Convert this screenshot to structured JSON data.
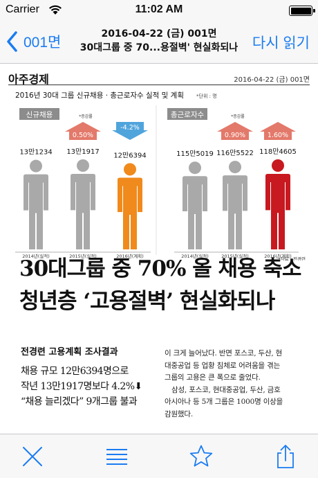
{
  "status_bar": {
    "carrier": "Carrier",
    "time": "11:02 AM"
  },
  "nav": {
    "back_label": "001면",
    "title_line1": "2016-04-22 (금) 001면",
    "title_line2": "30대그룹 중 70...용절벽' 현실화되나",
    "reload_label": "다시 읽기"
  },
  "paper": {
    "logo": "아주경제",
    "date": "2016-04-22 (금) 001면"
  },
  "chart_data": {
    "type": "bar",
    "title": "2016년 30대 그룹 신규채용 · 총근로자수 실적 및 계획",
    "unit": "*단위 : 명",
    "source": "*자료 : 전경련",
    "groups": [
      {
        "name": "신규채용",
        "categories": [
          "2014년(실적)",
          "2015년(실적)",
          "2016년(계획)"
        ],
        "value_labels": [
          "13만1234",
          "13만1917",
          "12만6394"
        ],
        "values": [
          131234,
          131917,
          126394
        ],
        "changes": [
          {
            "label": "*증감률",
            "value": "0.50%",
            "direction": "up"
          },
          {
            "label": "",
            "value": "-4.2%",
            "direction": "down"
          }
        ]
      },
      {
        "name": "총근로자수",
        "categories": [
          "2014년(실적)",
          "2015년(실적)",
          "2016년(계획)"
        ],
        "value_labels": [
          "115만5019",
          "116만5522",
          "118만4605"
        ],
        "values": [
          1155019,
          1165522,
          1184605
        ],
        "changes": [
          {
            "label": "*증감률",
            "value": "0.90%",
            "direction": "up"
          },
          {
            "label": "",
            "value": "1.60%",
            "direction": "up"
          }
        ]
      }
    ],
    "colors": {
      "gray": "#a9a9a9",
      "orange": "#f08a1c",
      "red": "#c7191f",
      "up_arrow": "#e06a5a",
      "down_arrow": "#3d9ad8",
      "label_box": "#8c8c8c"
    }
  },
  "article": {
    "headline_line1": "30대그룹 중 70% 올 채용 축소",
    "headline_line2": "청년층 ‘고용절벽’ 현실화되나",
    "subhead": "전경련 고용계획 조사결과",
    "lead_lines": [
      "채용 규모 12만6394명으로",
      "작년 13만1917명보다 4.2%⬇",
      "“채용 늘리겠다” 9개그룹 불과"
    ],
    "body_lines": [
      "이 크게 늘어났다. 반면 포스코, 두산, 현",
      "대중공업 등 업황 침체로 어려움을 겪는",
      "그룹의 고용은 큰 폭으로 줄었다.",
      "삼성, 포스코, 현대중공업, 두산, 금호",
      "아시아나 등 5개 그룹은 1000명 이상을",
      "감원했다."
    ]
  },
  "toolbar": {
    "icons": [
      "close-icon",
      "list-icon",
      "star-icon",
      "share-icon"
    ],
    "tint": "#1a7cf2"
  }
}
